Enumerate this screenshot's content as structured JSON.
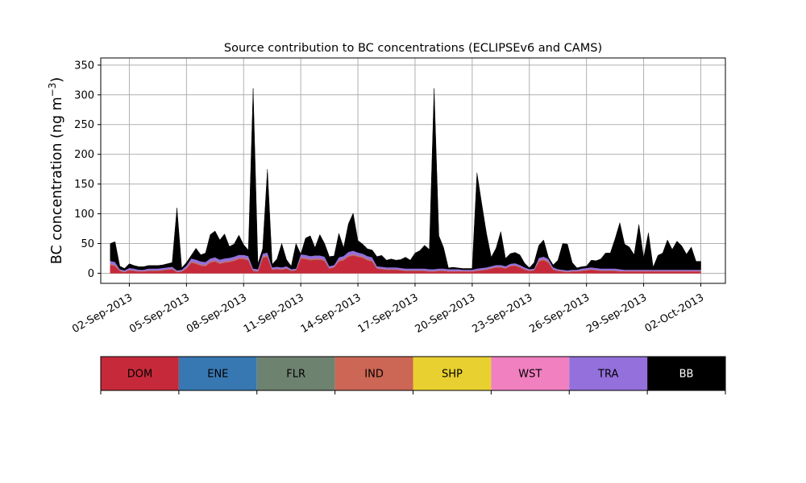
{
  "chart_data": {
    "type": "area",
    "stacked": true,
    "title": "Source contribution to BC concentrations (ECLIPSEv6 and CAMS)",
    "ylabel": "BC concentration (ng m",
    "ylabel_exponent": "−3",
    "ylabel_close": ")",
    "xlabel": "",
    "ylim": [
      -17,
      362
    ],
    "xlim": [
      "2013-08-31T12:00",
      "2013-10-03T07:00"
    ],
    "grid": true,
    "x_ticks": [
      "02-Sep-2013",
      "05-Sep-2013",
      "08-Sep-2013",
      "11-Sep-2013",
      "14-Sep-2013",
      "17-Sep-2013",
      "20-Sep-2013",
      "23-Sep-2013",
      "26-Sep-2013",
      "29-Sep-2013",
      "02-Oct-2013"
    ],
    "y_ticks": [
      0,
      50,
      100,
      150,
      200,
      250,
      300,
      350
    ],
    "x": [
      "2013-09-01T00:00",
      "2013-09-01T06:00",
      "2013-09-01T12:00",
      "2013-09-01T18:00",
      "2013-09-02T00:00",
      "2013-09-02T06:00",
      "2013-09-02T12:00",
      "2013-09-02T18:00",
      "2013-09-03T00:00",
      "2013-09-03T06:00",
      "2013-09-03T12:00",
      "2013-09-03T18:00",
      "2013-09-04T00:00",
      "2013-09-04T06:00",
      "2013-09-04T12:00",
      "2013-09-04T18:00",
      "2013-09-05T00:00",
      "2013-09-05T06:00",
      "2013-09-05T12:00",
      "2013-09-05T18:00",
      "2013-09-06T00:00",
      "2013-09-06T06:00",
      "2013-09-06T12:00",
      "2013-09-06T18:00",
      "2013-09-07T00:00",
      "2013-09-07T06:00",
      "2013-09-07T12:00",
      "2013-09-07T18:00",
      "2013-09-08T00:00",
      "2013-09-08T06:00",
      "2013-09-08T12:00",
      "2013-09-08T18:00",
      "2013-09-09T00:00",
      "2013-09-09T06:00",
      "2013-09-09T12:00",
      "2013-09-09T18:00",
      "2013-09-10T00:00",
      "2013-09-10T06:00",
      "2013-09-10T12:00",
      "2013-09-10T18:00",
      "2013-09-11T00:00",
      "2013-09-11T06:00",
      "2013-09-11T12:00",
      "2013-09-11T18:00",
      "2013-09-12T00:00",
      "2013-09-12T06:00",
      "2013-09-12T12:00",
      "2013-09-12T18:00",
      "2013-09-13T00:00",
      "2013-09-13T06:00",
      "2013-09-13T12:00",
      "2013-09-13T18:00",
      "2013-09-14T00:00",
      "2013-09-14T06:00",
      "2013-09-14T12:00",
      "2013-09-14T18:00",
      "2013-09-15T00:00",
      "2013-09-15T06:00",
      "2013-09-15T12:00",
      "2013-09-15T18:00",
      "2013-09-16T00:00",
      "2013-09-16T06:00",
      "2013-09-16T12:00",
      "2013-09-16T18:00",
      "2013-09-17T00:00",
      "2013-09-17T06:00",
      "2013-09-17T12:00",
      "2013-09-17T18:00",
      "2013-09-18T00:00",
      "2013-09-18T06:00",
      "2013-09-18T12:00",
      "2013-09-18T18:00",
      "2013-09-19T00:00",
      "2013-09-19T06:00",
      "2013-09-19T12:00",
      "2013-09-19T18:00",
      "2013-09-20T00:00",
      "2013-09-20T06:00",
      "2013-09-20T12:00",
      "2013-09-20T18:00",
      "2013-09-21T00:00",
      "2013-09-21T06:00",
      "2013-09-21T12:00",
      "2013-09-21T18:00",
      "2013-09-22T00:00",
      "2013-09-22T06:00",
      "2013-09-22T12:00",
      "2013-09-22T18:00",
      "2013-09-23T00:00",
      "2013-09-23T06:00",
      "2013-09-23T12:00",
      "2013-09-23T18:00",
      "2013-09-24T00:00",
      "2013-09-24T06:00",
      "2013-09-24T12:00",
      "2013-09-24T18:00",
      "2013-09-25T00:00",
      "2013-09-25T06:00",
      "2013-09-25T12:00",
      "2013-09-25T18:00",
      "2013-09-26T00:00",
      "2013-09-26T06:00",
      "2013-09-26T12:00",
      "2013-09-26T18:00",
      "2013-09-27T00:00",
      "2013-09-27T06:00",
      "2013-09-27T12:00",
      "2013-09-27T18:00",
      "2013-09-28T00:00",
      "2013-09-28T06:00",
      "2013-09-28T12:00",
      "2013-09-28T18:00",
      "2013-09-29T00:00",
      "2013-09-29T06:00",
      "2013-09-29T12:00",
      "2013-09-29T18:00",
      "2013-09-30T00:00",
      "2013-09-30T06:00",
      "2013-09-30T12:00",
      "2013-09-30T18:00",
      "2013-10-01T00:00",
      "2013-10-01T06:00",
      "2013-10-01T12:00",
      "2013-10-01T18:00",
      "2013-10-02T00:00"
    ],
    "series": [
      {
        "name": "DOM",
        "color": "#c62a3a",
        "values": [
          14,
          12,
          4,
          2,
          5,
          4,
          3,
          3,
          4,
          4,
          4,
          5,
          6,
          7,
          2,
          3,
          8,
          18,
          16,
          13,
          12,
          18,
          20,
          16,
          18,
          19,
          21,
          24,
          24,
          22,
          4,
          3,
          26,
          28,
          6,
          7,
          6,
          8,
          4,
          5,
          25,
          24,
          22,
          23,
          23,
          21,
          8,
          10,
          20,
          22,
          28,
          30,
          28,
          26,
          22,
          20,
          8,
          7,
          6,
          6,
          6,
          5,
          4,
          4,
          4,
          4,
          4,
          3,
          3,
          4,
          4,
          3,
          3,
          3,
          3,
          3,
          3,
          4,
          5,
          6,
          8,
          10,
          10,
          8,
          12,
          13,
          10,
          6,
          4,
          5,
          20,
          22,
          18,
          6,
          4,
          3,
          2,
          3,
          3,
          4,
          5,
          6,
          5,
          4,
          4,
          4,
          4,
          3,
          3,
          3,
          3,
          3,
          3,
          3,
          3,
          3,
          3,
          3,
          3,
          3,
          3,
          3,
          3,
          3,
          3
        ]
      },
      {
        "name": "ENE",
        "color": "#3878b2",
        "values": [
          0,
          0,
          0,
          0,
          0,
          0,
          0,
          0,
          0,
          0,
          0,
          0,
          0,
          0,
          0,
          0,
          0,
          0,
          0,
          0,
          0,
          0,
          0,
          0,
          0,
          0,
          0,
          0,
          0,
          0,
          0,
          0,
          0,
          0,
          0,
          0,
          0,
          0,
          0,
          0,
          0,
          0,
          0,
          0,
          0,
          0,
          0,
          0,
          0,
          0,
          0,
          0,
          0,
          0,
          0,
          0,
          0,
          0,
          0,
          0,
          0,
          0,
          0,
          0,
          0,
          0,
          0,
          0,
          0,
          0,
          0,
          0,
          0,
          0,
          0,
          0,
          0,
          0,
          0,
          0,
          0,
          0,
          0,
          0,
          0,
          0,
          0,
          0,
          0,
          0,
          0,
          0,
          0,
          0,
          0,
          0,
          0,
          0,
          0,
          0,
          0,
          0,
          0,
          0,
          0,
          0,
          0,
          0,
          0,
          0,
          0,
          0,
          0,
          0,
          0,
          0,
          0,
          0,
          0,
          0,
          0,
          0,
          0,
          0,
          0
        ]
      },
      {
        "name": "FLR",
        "color": "#6e8270",
        "values": [
          0,
          0,
          0,
          0,
          0,
          0,
          0,
          0,
          0,
          0,
          0,
          0,
          0,
          0,
          0,
          0,
          0,
          0,
          0,
          0,
          0,
          0,
          0,
          0,
          0,
          0,
          0,
          0,
          0,
          0,
          0,
          0,
          0,
          0,
          0,
          0,
          0,
          0,
          0,
          0,
          0,
          0,
          0,
          0,
          0,
          0,
          0,
          0,
          0,
          0,
          0,
          0,
          0,
          0,
          0,
          0,
          0,
          0,
          0,
          0,
          0,
          0,
          0,
          0,
          0,
          0,
          0,
          0,
          0,
          0,
          0,
          0,
          0,
          0,
          0,
          0,
          0,
          0,
          0,
          0,
          0,
          0,
          0,
          0,
          0,
          0,
          0,
          0,
          0,
          0,
          0,
          0,
          0,
          0,
          0,
          0,
          0,
          0,
          0,
          0,
          0,
          0,
          0,
          0,
          0,
          0,
          0,
          0,
          0,
          0,
          0,
          0,
          0,
          0,
          0,
          0,
          0,
          0,
          0,
          0,
          0,
          0,
          0,
          0,
          0
        ]
      },
      {
        "name": "IND",
        "color": "#cc6655",
        "values": [
          2,
          2,
          1,
          1,
          1,
          1,
          1,
          1,
          1,
          1,
          1,
          1,
          1,
          1,
          1,
          1,
          1,
          2,
          2,
          2,
          2,
          2,
          2,
          2,
          2,
          2,
          2,
          2,
          2,
          2,
          1,
          1,
          2,
          2,
          1,
          1,
          1,
          1,
          1,
          1,
          2,
          2,
          2,
          2,
          2,
          2,
          1,
          1,
          2,
          2,
          2,
          2,
          2,
          2,
          2,
          2,
          1,
          1,
          1,
          1,
          1,
          1,
          1,
          1,
          1,
          1,
          1,
          1,
          1,
          1,
          1,
          1,
          1,
          1,
          1,
          1,
          1,
          1,
          1,
          1,
          1,
          1,
          1,
          1,
          1,
          1,
          1,
          1,
          1,
          1,
          2,
          2,
          2,
          1,
          1,
          1,
          1,
          1,
          1,
          1,
          1,
          1,
          1,
          1,
          1,
          1,
          1,
          1,
          1,
          1,
          1,
          1,
          1,
          1,
          1,
          1,
          1,
          1,
          1,
          1,
          1,
          1,
          1,
          1,
          1
        ]
      },
      {
        "name": "SHP",
        "color": "#e8d030",
        "values": [
          0,
          0,
          0,
          0,
          0,
          0,
          0,
          0,
          0,
          0,
          0,
          0,
          0,
          0,
          0,
          0,
          0,
          0,
          0,
          0,
          0,
          0,
          0,
          0,
          0,
          0,
          0,
          0,
          0,
          0,
          0,
          0,
          0,
          0,
          0,
          0,
          0,
          0,
          0,
          0,
          0,
          0,
          0,
          0,
          0,
          0,
          0,
          0,
          0,
          0,
          0,
          0,
          0,
          0,
          0,
          0,
          0,
          0,
          0,
          0,
          0,
          0,
          0,
          0,
          0,
          0,
          0,
          0,
          0,
          0,
          0,
          0,
          0,
          0,
          0,
          0,
          0,
          0,
          0,
          0,
          0,
          0,
          0,
          0,
          0,
          0,
          0,
          0,
          0,
          0,
          0,
          0,
          0,
          0,
          0,
          0,
          0,
          0,
          0,
          0,
          0,
          0,
          0,
          0,
          0,
          0,
          0,
          0,
          0,
          0,
          0,
          0,
          0,
          0,
          0,
          0,
          0,
          0,
          0,
          0,
          0,
          0,
          0,
          0,
          0
        ]
      },
      {
        "name": "WST",
        "color": "#f080c0",
        "values": [
          0,
          0,
          0,
          0,
          0,
          0,
          0,
          0,
          0,
          0,
          0,
          0,
          0,
          0,
          0,
          0,
          0,
          0,
          0,
          0,
          0,
          0,
          0,
          0,
          0,
          0,
          0,
          0,
          0,
          0,
          0,
          0,
          0,
          0,
          0,
          0,
          0,
          0,
          0,
          0,
          0,
          0,
          0,
          0,
          0,
          0,
          0,
          0,
          0,
          0,
          0,
          0,
          0,
          0,
          0,
          0,
          0,
          0,
          0,
          0,
          0,
          0,
          0,
          0,
          0,
          0,
          0,
          0,
          0,
          0,
          0,
          0,
          0,
          0,
          0,
          0,
          0,
          0,
          0,
          0,
          0,
          0,
          0,
          0,
          0,
          0,
          0,
          0,
          0,
          0,
          0,
          0,
          0,
          0,
          0,
          0,
          0,
          0,
          0,
          0,
          0,
          0,
          0,
          0,
          0,
          0,
          0,
          0,
          0,
          0,
          0,
          0,
          0,
          0,
          0,
          0,
          0,
          0,
          0,
          0,
          0,
          0,
          0,
          0,
          0
        ]
      },
      {
        "name": "TRA",
        "color": "#9370db",
        "values": [
          5,
          5,
          2,
          2,
          3,
          3,
          2,
          2,
          3,
          3,
          3,
          3,
          3,
          3,
          2,
          2,
          4,
          5,
          5,
          5,
          5,
          5,
          5,
          5,
          5,
          5,
          5,
          5,
          5,
          5,
          3,
          3,
          5,
          5,
          3,
          3,
          3,
          3,
          2,
          2,
          5,
          5,
          5,
          5,
          5,
          5,
          3,
          3,
          5,
          5,
          6,
          6,
          5,
          5,
          5,
          5,
          3,
          3,
          3,
          3,
          3,
          3,
          3,
          3,
          3,
          3,
          3,
          3,
          3,
          3,
          3,
          3,
          3,
          3,
          2,
          2,
          2,
          3,
          3,
          3,
          3,
          3,
          3,
          3,
          3,
          3,
          3,
          3,
          2,
          2,
          4,
          4,
          4,
          3,
          2,
          2,
          2,
          2,
          2,
          3,
          3,
          3,
          3,
          3,
          3,
          3,
          3,
          3,
          2,
          2,
          2,
          2,
          2,
          2,
          2,
          2,
          2,
          2,
          2,
          2,
          2,
          2,
          2,
          2,
          2
        ]
      },
      {
        "name": "BB",
        "color": "#000000",
        "values": [
          29,
          34,
          5,
          3,
          7,
          5,
          5,
          5,
          5,
          5,
          5,
          5,
          6,
          7,
          105,
          3,
          5,
          5,
          19,
          11,
          15,
          40,
          44,
          33,
          41,
          19,
          21,
          33,
          17,
          10,
          303,
          9,
          8,
          140,
          5,
          13,
          40,
          11,
          5,
          42,
          0,
          28,
          34,
          13,
          35,
          22,
          16,
          15,
          40,
          14,
          47,
          63,
          20,
          16,
          12,
          12,
          16,
          19,
          12,
          14,
          12,
          14,
          19,
          14,
          26,
          30,
          39,
          33,
          304,
          55,
          35,
          2,
          3,
          2,
          2,
          2,
          2,
          161,
          108,
          57,
          15,
          28,
          56,
          13,
          17,
          18,
          17,
          7,
          2,
          10,
          21,
          28,
          3,
          4,
          15,
          44,
          44,
          12,
          3,
          3,
          3,
          12,
          12,
          16,
          26,
          26,
          50,
          78,
          43,
          38,
          25,
          76,
          20,
          62,
          4,
          24,
          28,
          50,
          34,
          48,
          40,
          26,
          38,
          14,
          14
        ]
      }
    ]
  },
  "legend": {
    "items": [
      {
        "label": "DOM",
        "color": "#c62a3a",
        "text_color": "#000000"
      },
      {
        "label": "ENE",
        "color": "#3878b2",
        "text_color": "#000000"
      },
      {
        "label": "FLR",
        "color": "#6e8270",
        "text_color": "#000000"
      },
      {
        "label": "IND",
        "color": "#cc6655",
        "text_color": "#000000"
      },
      {
        "label": "SHP",
        "color": "#e8d030",
        "text_color": "#000000"
      },
      {
        "label": "WST",
        "color": "#f080c0",
        "text_color": "#000000"
      },
      {
        "label": "TRA",
        "color": "#9370db",
        "text_color": "#000000"
      },
      {
        "label": "BB",
        "color": "#000000",
        "text_color": "#ffffff"
      }
    ]
  }
}
